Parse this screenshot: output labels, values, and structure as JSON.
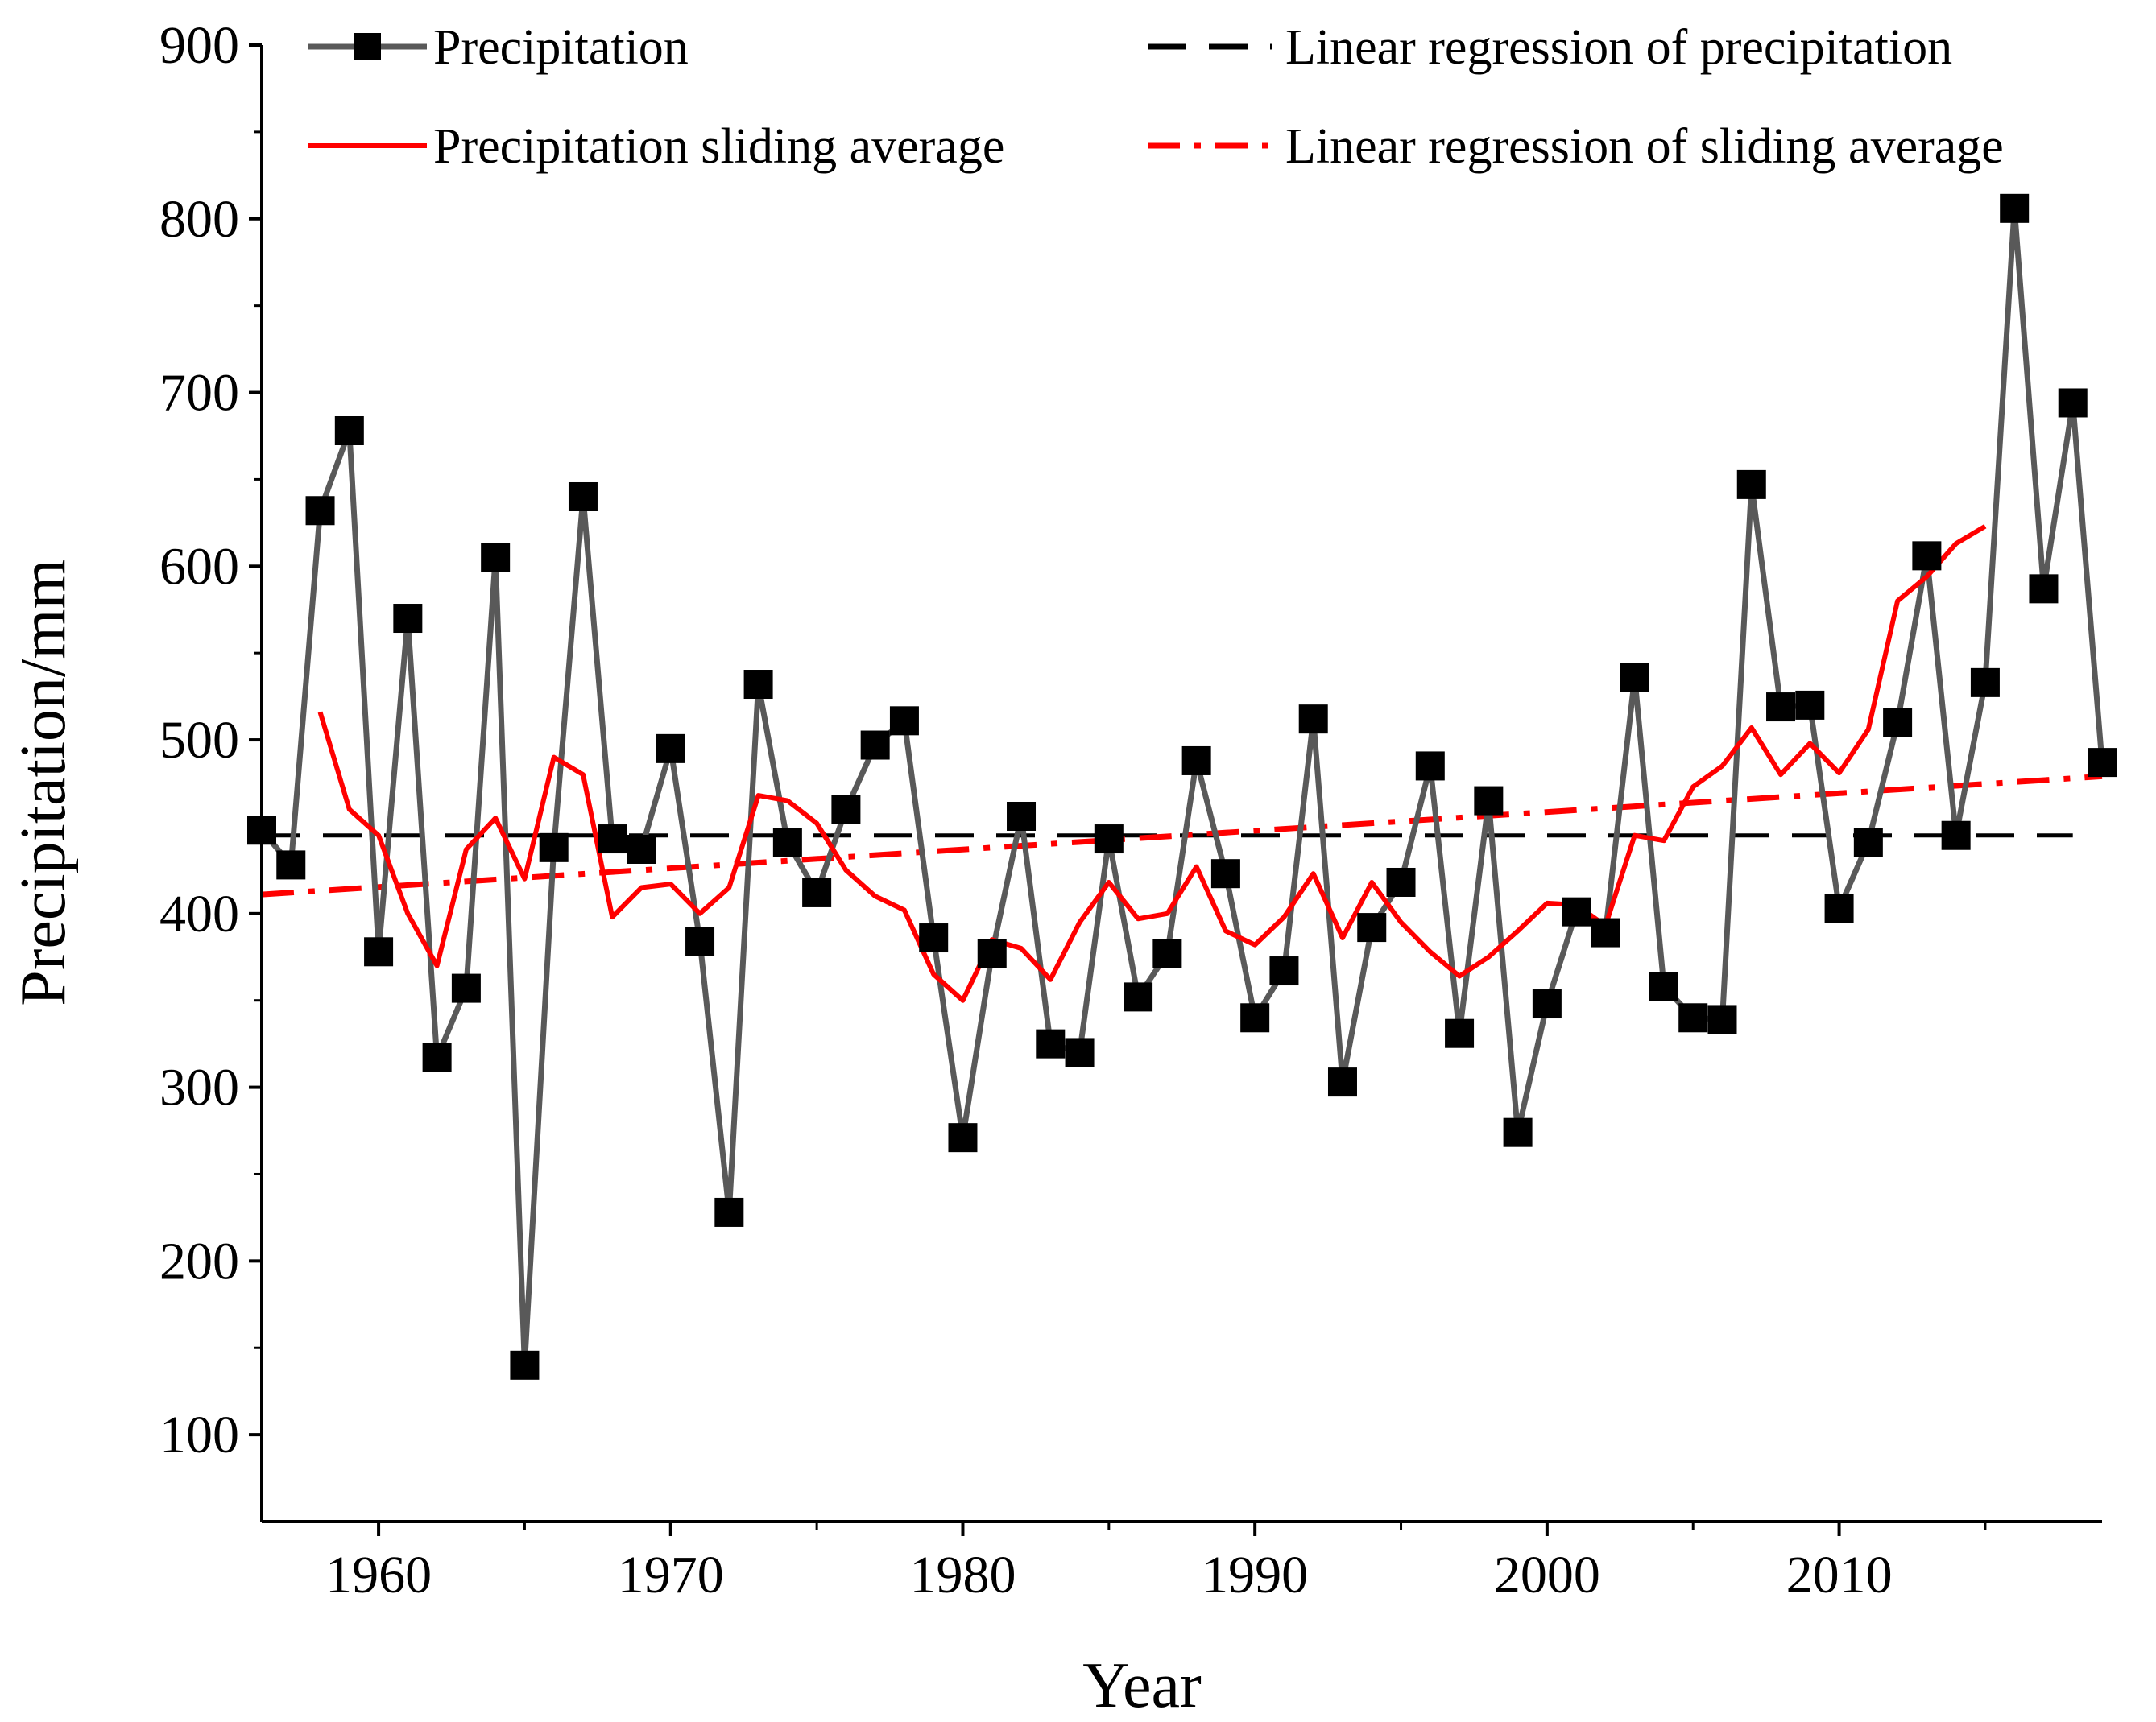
{
  "chart_data": {
    "type": "line",
    "title": "",
    "xlabel": "Year",
    "ylabel": "Precipitation/mm",
    "xlim": [
      1956,
      2019
    ],
    "ylim": [
      50,
      900
    ],
    "x_ticks": [
      1960,
      1970,
      1980,
      1990,
      2000,
      2010
    ],
    "y_ticks": [
      100,
      200,
      300,
      400,
      500,
      600,
      700,
      800,
      900
    ],
    "legend_position": "top",
    "series": [
      {
        "name": "Precipitation",
        "style": "gray line with black square markers",
        "color": "#595959",
        "marker_color": "#000000",
        "x": [
          1956,
          1957,
          1958,
          1959,
          1960,
          1961,
          1962,
          1963,
          1964,
          1965,
          1966,
          1967,
          1968,
          1969,
          1970,
          1971,
          1972,
          1973,
          1974,
          1975,
          1976,
          1977,
          1978,
          1979,
          1980,
          1981,
          1982,
          1983,
          1984,
          1985,
          1986,
          1987,
          1988,
          1989,
          1990,
          1991,
          1992,
          1993,
          1994,
          1995,
          1996,
          1997,
          1998,
          1999,
          2000,
          2001,
          2002,
          2003,
          2004,
          2005,
          2006,
          2007,
          2008,
          2009,
          2010,
          2011,
          2012,
          2013,
          2014,
          2015,
          2016,
          2017,
          2018,
          2019
        ],
        "values": [
          448,
          428,
          632,
          678,
          378,
          570,
          317,
          357,
          605,
          140,
          438,
          640,
          443,
          437,
          495,
          384,
          228,
          532,
          441,
          412,
          460,
          497,
          511,
          386,
          271,
          377,
          456,
          325,
          320,
          443,
          352,
          377,
          488,
          423,
          340,
          367,
          512,
          303,
          392,
          418,
          485,
          331,
          465,
          274,
          348,
          401,
          389,
          536,
          358,
          340,
          339,
          647,
          519,
          520,
          403,
          441,
          510,
          606,
          445,
          533,
          806,
          587,
          694,
          487
        ]
      },
      {
        "name": "Precipitation sliding average",
        "style": "solid red line",
        "color": "#ff0000",
        "x": [
          1958,
          1959,
          1960,
          1961,
          1962,
          1963,
          1964,
          1965,
          1966,
          1967,
          1968,
          1969,
          1970,
          1971,
          1972,
          1973,
          1974,
          1975,
          1976,
          1977,
          1978,
          1979,
          1980,
          1981,
          1982,
          1983,
          1984,
          1985,
          1986,
          1987,
          1988,
          1989,
          1990,
          1991,
          1992,
          1993,
          1994,
          1995,
          1996,
          1997,
          1998,
          1999,
          2000,
          2001,
          2002,
          2003,
          2004,
          2005,
          2006,
          2007,
          2008,
          2009,
          2010,
          2011,
          2012,
          2013,
          2014,
          2015
        ],
        "values": [
          516,
          460,
          445,
          400,
          370,
          437,
          455,
          420,
          490,
          480,
          398,
          415,
          417,
          400,
          415,
          468,
          465,
          452,
          425,
          410,
          402,
          365,
          350,
          385,
          380,
          362,
          395,
          418,
          397,
          400,
          427,
          390,
          382,
          398,
          423,
          386,
          418,
          395,
          378,
          364,
          375,
          390,
          406,
          405,
          393,
          445,
          442,
          473,
          485,
          507,
          480,
          498,
          481,
          506,
          580,
          594,
          613,
          623
        ]
      },
      {
        "name": "Linear regression of precipitation",
        "style": "black dashed line",
        "color": "#000000",
        "x": [
          1956,
          2018
        ],
        "values": [
          445,
          445
        ]
      },
      {
        "name": "Linear regression of sliding average",
        "style": "red dash-dot line",
        "color": "#ff0000",
        "x": [
          1956,
          2019
        ],
        "values": [
          411,
          479
        ]
      }
    ]
  }
}
